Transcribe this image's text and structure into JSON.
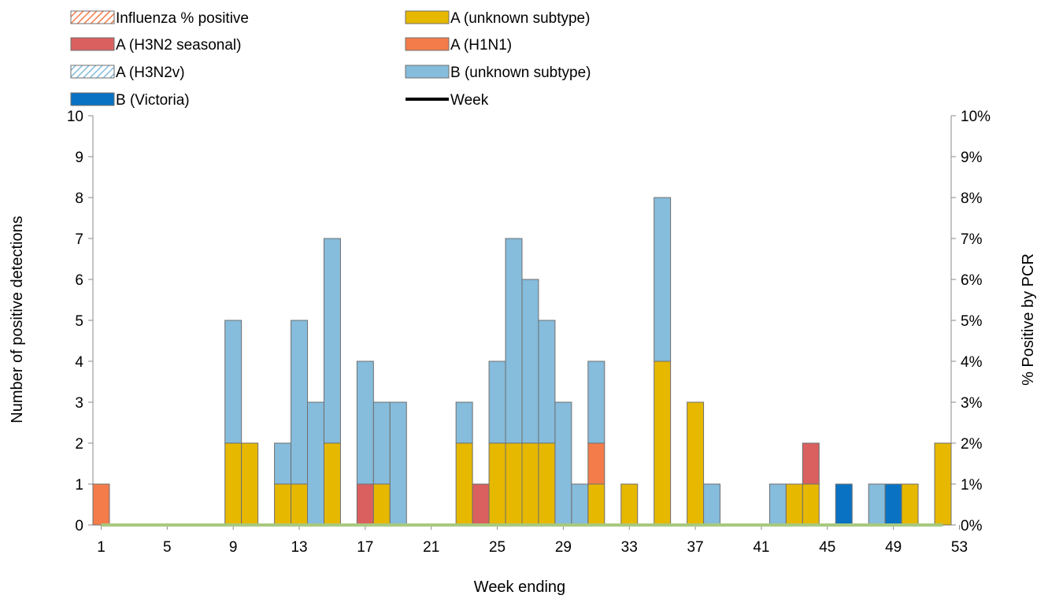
{
  "chart_data": {
    "type": "bar",
    "stacked": true,
    "title": "",
    "xlabel": "Week ending",
    "ylabel": "Number of positive detections",
    "y2label": "% Positive by PCR",
    "ylim": [
      0,
      10
    ],
    "y2lim": [
      0,
      10
    ],
    "yticks": [
      "0",
      "1",
      "2",
      "3",
      "4",
      "5",
      "6",
      "7",
      "8",
      "9",
      "10"
    ],
    "y2ticks": [
      "0%",
      "1%",
      "2%",
      "3%",
      "4%",
      "5%",
      "6%",
      "7%",
      "8%",
      "9%",
      "10%"
    ],
    "xticks": [
      "1",
      "5",
      "9",
      "13",
      "17",
      "21",
      "25",
      "29",
      "33",
      "37",
      "41",
      "45",
      "49",
      "53"
    ],
    "weeks": [
      1,
      2,
      3,
      4,
      5,
      6,
      7,
      8,
      9,
      10,
      11,
      12,
      13,
      14,
      15,
      16,
      17,
      18,
      19,
      20,
      21,
      22,
      23,
      24,
      25,
      26,
      27,
      28,
      29,
      30,
      31,
      32,
      33,
      34,
      35,
      36,
      37,
      38,
      39,
      40,
      41,
      42,
      43,
      44,
      45,
      46,
      47,
      48,
      49,
      50,
      51,
      52
    ],
    "series": [
      {
        "name": "A (unknown subtype)",
        "color": "#e6b800",
        "values": [
          0,
          0,
          0,
          0,
          0,
          0,
          0,
          0,
          2,
          2,
          0,
          1,
          1,
          0,
          2,
          0,
          0,
          1,
          0,
          0,
          0,
          0,
          2,
          0,
          2,
          2,
          2,
          2,
          0,
          0,
          1,
          0,
          1,
          0,
          4,
          0,
          3,
          0,
          0,
          0,
          0,
          0,
          1,
          1,
          0,
          0,
          0,
          0,
          0,
          1,
          0,
          2
        ]
      },
      {
        "name": "A (H3N2 seasonal)",
        "color": "#d9605f",
        "values": [
          0,
          0,
          0,
          0,
          0,
          0,
          0,
          0,
          0,
          0,
          0,
          0,
          0,
          0,
          0,
          0,
          1,
          0,
          0,
          0,
          0,
          0,
          0,
          1,
          0,
          0,
          0,
          0,
          0,
          0,
          0,
          0,
          0,
          0,
          0,
          0,
          0,
          0,
          0,
          0,
          0,
          0,
          0,
          1,
          0,
          0,
          0,
          0,
          0,
          0,
          0,
          0
        ]
      },
      {
        "name": "A (H1N1)",
        "color": "#f47c4a",
        "values": [
          1,
          0,
          0,
          0,
          0,
          0,
          0,
          0,
          0,
          0,
          0,
          0,
          0,
          0,
          0,
          0,
          0,
          0,
          0,
          0,
          0,
          0,
          0,
          0,
          0,
          0,
          0,
          0,
          0,
          0,
          1,
          0,
          0,
          0,
          0,
          0,
          0,
          0,
          0,
          0,
          0,
          0,
          0,
          0,
          0,
          0,
          0,
          0,
          0,
          0,
          0,
          0
        ]
      },
      {
        "name": "B (unknown subtype)",
        "color": "#86bcdc",
        "values": [
          0,
          0,
          0,
          0,
          0,
          0,
          0,
          0,
          3,
          0,
          0,
          1,
          4,
          3,
          5,
          0,
          3,
          2,
          3,
          0,
          0,
          0,
          1,
          0,
          2,
          5,
          4,
          3,
          3,
          1,
          2,
          0,
          0,
          0,
          4,
          0,
          0,
          1,
          0,
          0,
          0,
          1,
          0,
          0,
          0,
          0,
          0,
          1,
          0,
          0,
          0,
          0
        ]
      },
      {
        "name": "B (Victoria)",
        "color": "#0a72c2",
        "values": [
          0,
          0,
          0,
          0,
          0,
          0,
          0,
          0,
          0,
          0,
          0,
          0,
          0,
          0,
          0,
          0,
          0,
          0,
          0,
          0,
          0,
          0,
          0,
          0,
          0,
          0,
          0,
          0,
          0,
          0,
          0,
          0,
          0,
          0,
          0,
          0,
          0,
          0,
          0,
          0,
          0,
          0,
          0,
          0,
          0,
          1,
          0,
          0,
          1,
          0,
          0,
          0
        ]
      },
      {
        "name": "A (H3N2v)",
        "color": "#a9d0e6",
        "values": [
          0,
          0,
          0,
          0,
          0,
          0,
          0,
          0,
          0,
          0,
          0,
          0,
          0,
          0,
          0,
          0,
          0,
          0,
          0,
          0,
          0,
          0,
          0,
          0,
          0,
          0,
          0,
          0,
          0,
          0,
          0,
          0,
          0,
          0,
          0,
          0,
          0,
          0,
          0,
          0,
          0,
          0,
          0,
          0,
          0,
          0,
          0,
          0,
          0,
          0,
          0,
          0
        ]
      }
    ],
    "line": {
      "name": "Influenza % positive",
      "axis": "right",
      "color": "#a8c97f",
      "values": [
        0,
        0,
        0,
        0,
        0,
        0,
        0,
        0,
        0,
        0,
        0,
        0,
        0,
        0,
        0,
        0,
        0,
        0,
        0,
        0,
        0,
        0,
        0,
        0,
        0,
        0,
        0,
        0,
        0,
        0,
        0,
        0,
        0,
        0,
        0,
        0,
        0,
        0,
        0,
        0,
        0,
        0,
        0,
        0,
        0,
        0,
        0,
        0,
        0,
        0,
        0,
        0
      ]
    },
    "legend": [
      {
        "label": "Influenza % positive",
        "type": "hatch",
        "color": "#f47c4a"
      },
      {
        "label": "A (unknown subtype)",
        "type": "box",
        "color": "#e6b800"
      },
      {
        "label": "A (H3N2 seasonal)",
        "type": "box",
        "color": "#d9605f"
      },
      {
        "label": "A (H1N1)",
        "type": "box",
        "color": "#f47c4a"
      },
      {
        "label": "A (H3N2v)",
        "type": "hatch",
        "color": "#86bcdc"
      },
      {
        "label": "B (unknown subtype)",
        "type": "box",
        "color": "#86bcdc"
      },
      {
        "label": "B (Victoria)",
        "type": "box",
        "color": "#0a72c2"
      },
      {
        "label": "Week",
        "type": "line",
        "color": "#000000"
      }
    ],
    "legend_position": "top-left",
    "grid": false
  }
}
